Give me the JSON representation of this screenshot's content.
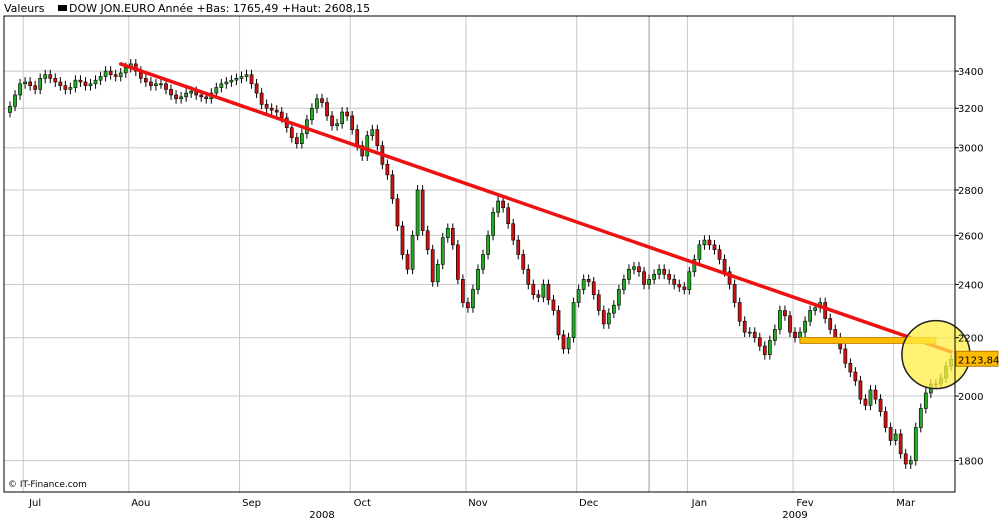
{
  "header": {
    "values_label": "Valeurs",
    "series_name": "DOW JON.EURO",
    "stats": "Année +Bas: 1765,49 +Haut: 2608,15"
  },
  "source": "© IT-Finance.com",
  "colors": {
    "up": "#22aa22",
    "down": "#cc1111",
    "trendline": "#ee1111",
    "resistance": "#ffbb00",
    "highlight": "#ffee44",
    "grid": "#c8c8c8"
  },
  "chart_data": {
    "type": "candlestick",
    "title": "DOW JON.EURO",
    "y_axis_position": "right",
    "y_axis_scale": "log",
    "ylim": [
      1710,
      3720
    ],
    "yticks": [
      1800,
      2000,
      2200,
      2400,
      2600,
      2800,
      3000,
      3200,
      3400
    ],
    "months": [
      {
        "label": "Jul",
        "idx": 5
      },
      {
        "label": "Aou",
        "idx": 26
      },
      {
        "label": "Sep",
        "idx": 48
      },
      {
        "label": "Oct",
        "idx": 70
      },
      {
        "label": "Nov",
        "idx": 93
      },
      {
        "label": "Dec",
        "idx": 115
      },
      {
        "label": "Jan",
        "idx": 137
      },
      {
        "label": "Fev",
        "idx": 158
      },
      {
        "label": "Mar",
        "idx": 178
      }
    ],
    "years": [
      {
        "label": "2008",
        "idx": 62
      },
      {
        "label": "2009",
        "idx": 156
      }
    ],
    "x_count": 187,
    "year_separator_idx": 127,
    "last_value_label": "2123,84",
    "trendline": [
      {
        "idx": 22,
        "value": 3440
      },
      {
        "idx": 187,
        "value": 2150
      }
    ],
    "resistance_line": {
      "start_idx": 157,
      "end_idx": 184,
      "value": 2190
    },
    "highlight_circle": {
      "idx": 184,
      "value": 2140,
      "radius": 34
    },
    "closes": [
      3210,
      3270,
      3330,
      3340,
      3320,
      3300,
      3360,
      3380,
      3360,
      3340,
      3320,
      3300,
      3310,
      3350,
      3340,
      3320,
      3330,
      3350,
      3370,
      3400,
      3380,
      3370,
      3390,
      3420,
      3440,
      3400,
      3360,
      3340,
      3320,
      3330,
      3330,
      3300,
      3270,
      3250,
      3260,
      3280,
      3290,
      3270,
      3260,
      3250,
      3280,
      3310,
      3330,
      3340,
      3350,
      3360,
      3370,
      3380,
      3330,
      3280,
      3220,
      3200,
      3190,
      3180,
      3150,
      3100,
      3050,
      3020,
      3070,
      3140,
      3200,
      3250,
      3230,
      3160,
      3110,
      3120,
      3180,
      3160,
      3090,
      3010,
      2960,
      3060,
      3090,
      3010,
      2920,
      2870,
      2760,
      2640,
      2520,
      2460,
      2600,
      2800,
      2620,
      2540,
      2410,
      2480,
      2590,
      2630,
      2560,
      2420,
      2330,
      2310,
      2380,
      2460,
      2520,
      2600,
      2700,
      2750,
      2720,
      2650,
      2580,
      2520,
      2460,
      2400,
      2360,
      2350,
      2400,
      2340,
      2300,
      2210,
      2160,
      2200,
      2330,
      2380,
      2420,
      2410,
      2360,
      2300,
      2250,
      2290,
      2320,
      2380,
      2420,
      2460,
      2470,
      2450,
      2400,
      2420,
      2440,
      2460,
      2440,
      2420,
      2400,
      2390,
      2380,
      2450,
      2500,
      2560,
      2580,
      2560,
      2540,
      2500,
      2450,
      2400,
      2330,
      2260,
      2220,
      2220,
      2200,
      2170,
      2140,
      2190,
      2230,
      2300,
      2280,
      2220,
      2200,
      2220,
      2260,
      2300,
      2310,
      2330,
      2270,
      2230,
      2200,
      2160,
      2110,
      2080,
      2050,
      1990,
      1970,
      2020,
      1990,
      1950,
      1900,
      1860,
      1880,
      1820,
      1790,
      1800,
      1900,
      1960,
      2010,
      2040,
      2040,
      2060,
      2100,
      2123.84
    ],
    "xlabel": "",
    "ylabel": ""
  }
}
